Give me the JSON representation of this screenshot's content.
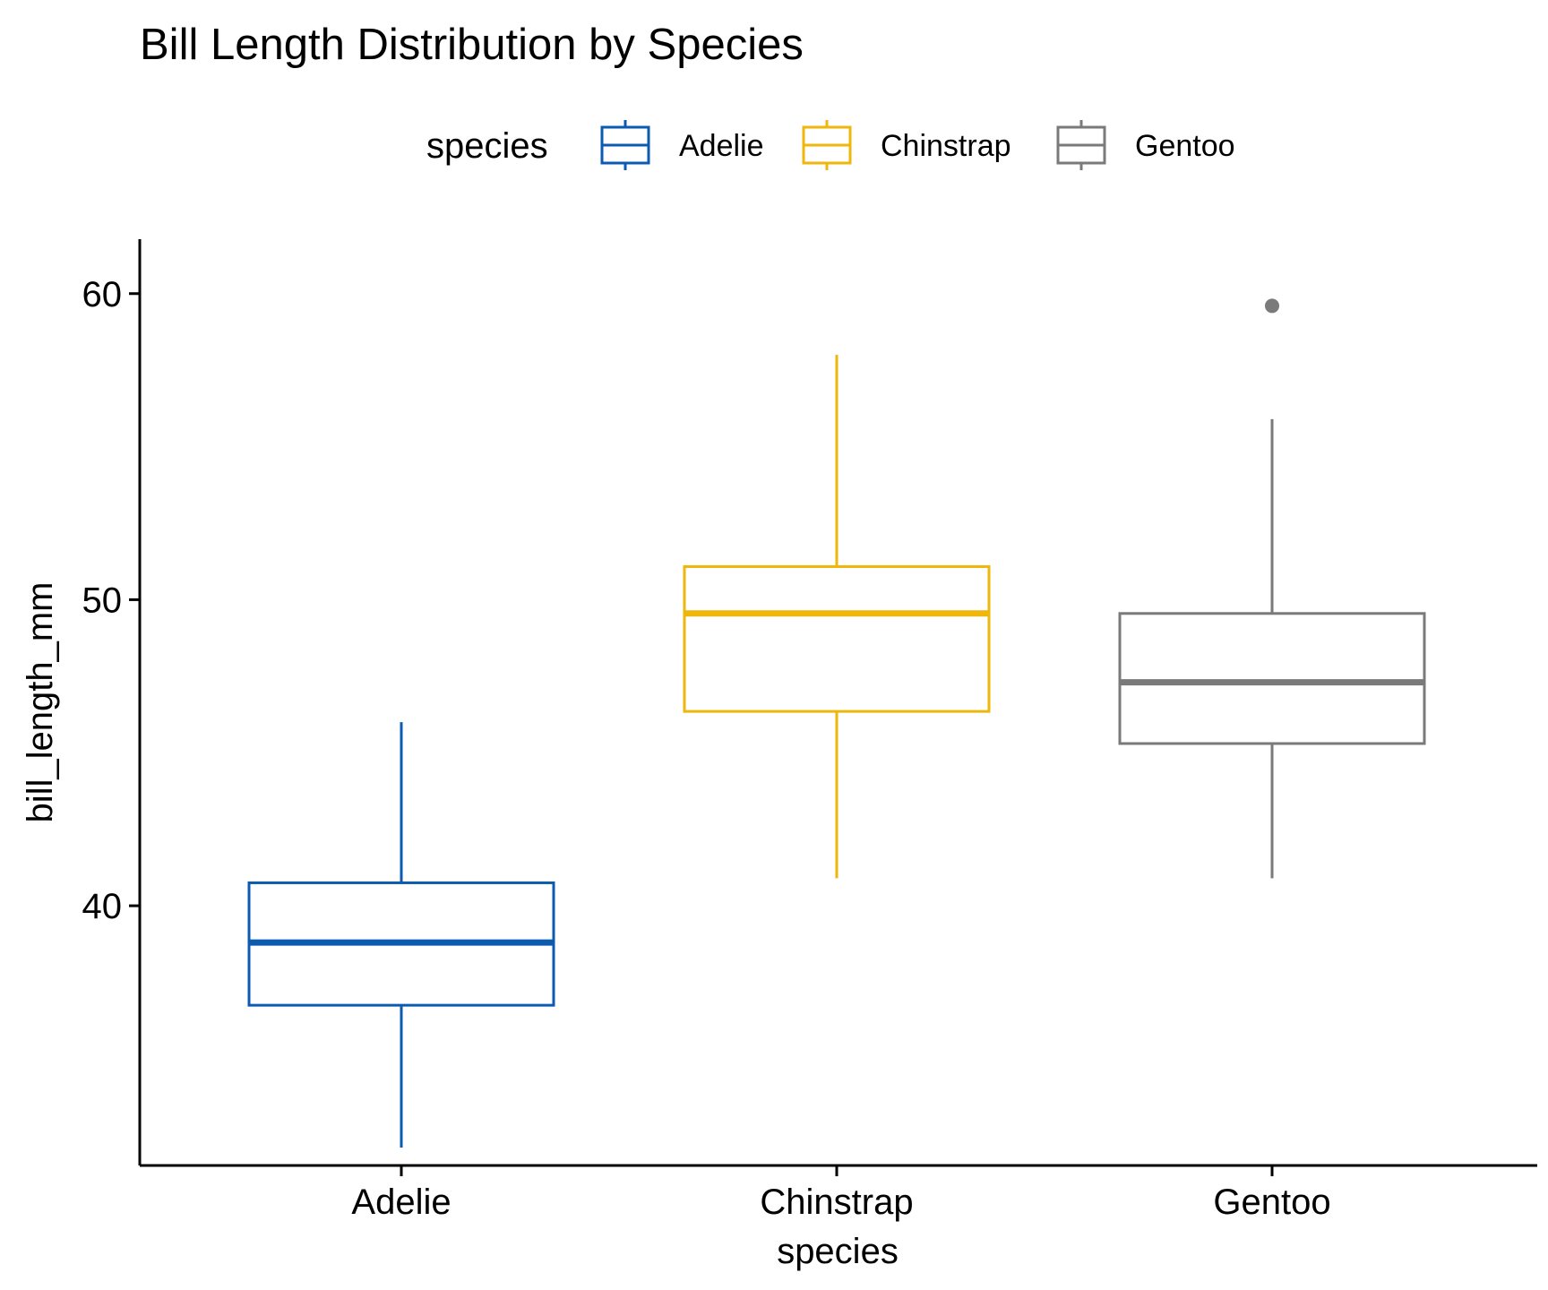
{
  "chart_data": {
    "type": "boxplot",
    "title": "Bill Length Distribution by Species",
    "xlabel": "species",
    "ylabel": "bill_length_mm",
    "ylim": [
      32.1,
      60.9
    ],
    "yticks": [
      40,
      50,
      60
    ],
    "grid": false,
    "legend": {
      "title": "species",
      "placement": "top",
      "entries": [
        "Adelie",
        "Chinstrap",
        "Gentoo"
      ]
    },
    "categories": [
      "Adelie",
      "Chinstrap",
      "Gentoo"
    ],
    "series": [
      {
        "name": "Adelie",
        "color": "#0C5BB0",
        "whisker_low": 32.1,
        "q1": 36.75,
        "median": 38.8,
        "q3": 40.75,
        "whisker_high": 46.0,
        "outliers": []
      },
      {
        "name": "Chinstrap",
        "color": "#EFB60B",
        "whisker_low": 40.9,
        "q1": 46.35,
        "median": 49.55,
        "q3": 51.08,
        "whisker_high": 58.0,
        "outliers": []
      },
      {
        "name": "Gentoo",
        "color": "#7A7A7A",
        "whisker_low": 40.9,
        "q1": 45.3,
        "median": 47.3,
        "q3": 49.55,
        "whisker_high": 55.9,
        "outliers": [
          59.6
        ]
      }
    ]
  }
}
